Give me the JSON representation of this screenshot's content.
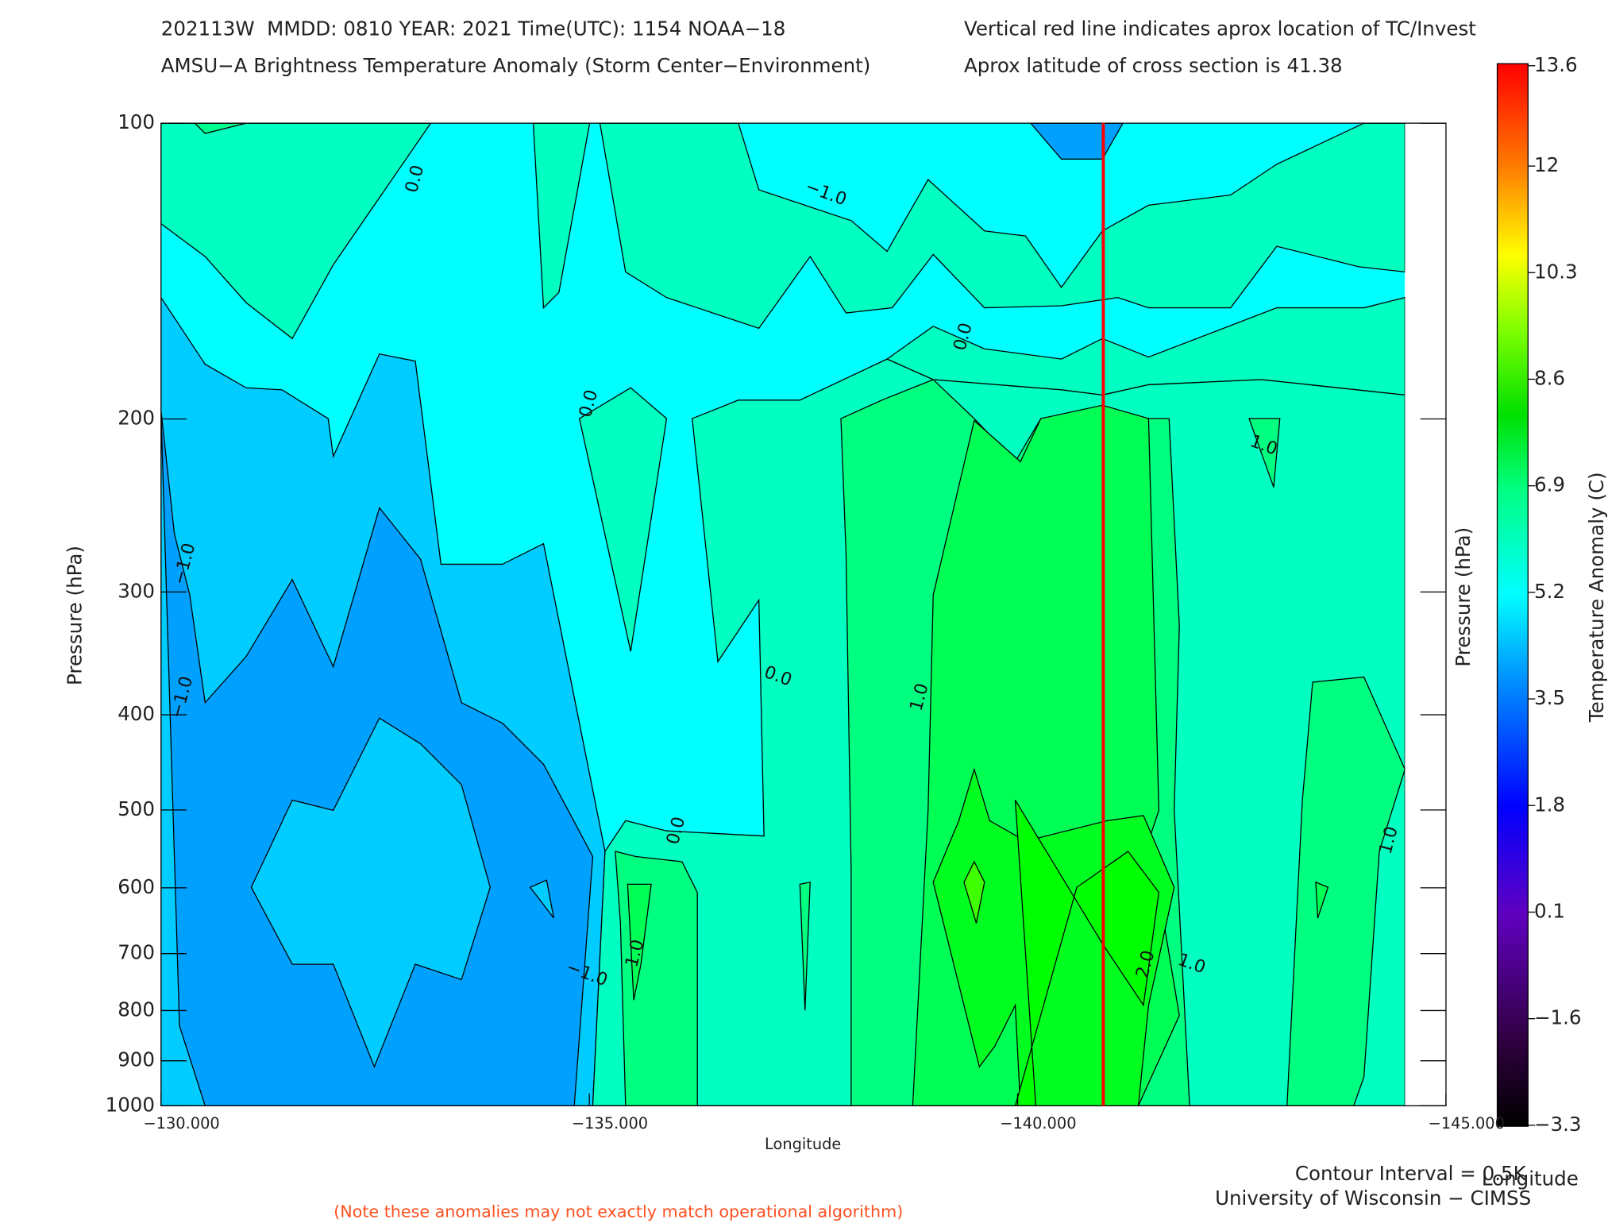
{
  "chart_data": {
    "type": "contour",
    "title_lines": [
      "202113W  MMDD: 0810 YEAR: 2021 Time(UTC): 1154 NOAA−18",
      "AMSU−A Brightness Temperature Anomaly (Storm Center−Environment)"
    ],
    "info_lines": [
      "Vertical red line indicates aprox location of TC/Invest",
      "Aprox latitude of cross section is 41.38"
    ],
    "x_label": "Longitude",
    "y_label": "Pressure (hPa)",
    "colorbar_label": "Temperature Anomaly (C)",
    "footer_lines": [
      "Contour Interval = 0.5K",
      "University of Wisconsin − CIMSS"
    ],
    "note": "(Note these anomalies may not exactly match operational algorithm)",
    "xlim": [
      -130,
      -145
    ],
    "xticks": [
      {
        "value": -130,
        "label": "−130.000"
      },
      {
        "value": -135,
        "label": "−135.000"
      },
      {
        "value": -140,
        "label": "−140.000"
      },
      {
        "value": -145,
        "label": "−145.000"
      }
    ],
    "ylim": [
      1000,
      100
    ],
    "y_log": true,
    "yticks": [
      100,
      200,
      300,
      400,
      500,
      600,
      700,
      800,
      900,
      1000
    ],
    "clim": [
      -3.3,
      13.6
    ],
    "cticks": [
      13.6,
      12.0,
      10.3,
      8.6,
      6.9,
      5.2,
      3.5,
      1.8,
      0.1,
      {
        "value": -1.6,
        "label": "−1.6"
      },
      {
        "value": -3.3,
        "label": "−3.3"
      }
    ],
    "storm_longitude": -141.0,
    "storm_line_color": "#ff0000",
    "contour_labels": {
      "lon": [
        -132.97,
        -137.76,
        -139.37,
        -135.0,
        -142.87,
        -130.28,
        -130.25,
        -137.2,
        -138.86,
        -136.02,
        -134.97,
        -135.54,
        -141.5,
        -142.03,
        -144.34
      ],
      "pressure": [
        114,
        118,
        165,
        193,
        213,
        281,
        384,
        366,
        384,
        525,
        735,
        700,
        718,
        718,
        537
      ],
      "values": [
        0,
        -1,
        0,
        0,
        1,
        -1,
        -1,
        0,
        1,
        0,
        -1,
        1,
        2,
        1,
        1
      ],
      "value_labels": [
        "0.0",
        "−1.0",
        "0.0",
        "0.0",
        "1.0",
        "−1.0",
        "−1.0",
        "0.0",
        "1.0",
        "0.0",
        "−1.0",
        "1.0",
        "2.0",
        "1.0",
        "1.0"
      ]
    }
  }
}
